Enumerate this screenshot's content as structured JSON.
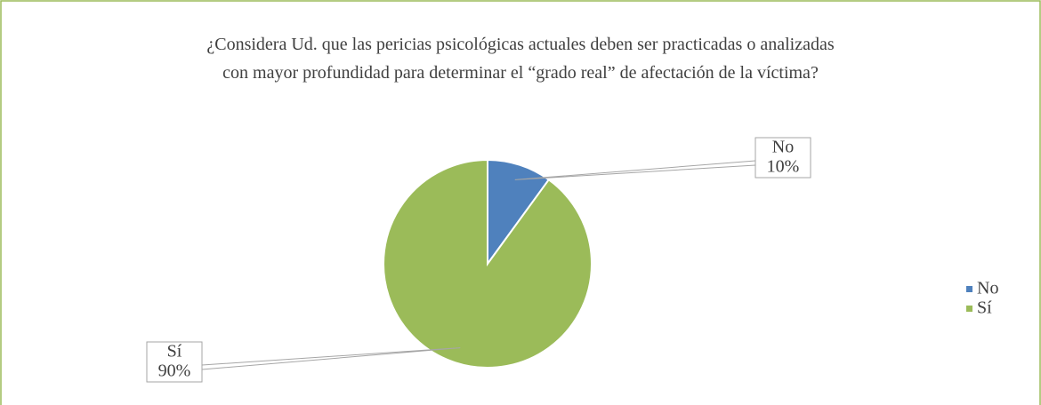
{
  "chart_data": {
    "type": "pie",
    "title": "¿Considera Ud. que las pericias psicológicas actuales deben ser practicadas o analizadas con mayor profundidad para determinar el “grado real” de afectación de la víctima?",
    "categories": [
      "No",
      "Sí"
    ],
    "values": [
      10,
      90
    ],
    "value_labels": [
      "10%",
      "90%"
    ],
    "colors": [
      "#4f81bd",
      "#9bbb59"
    ],
    "legend": "right"
  }
}
